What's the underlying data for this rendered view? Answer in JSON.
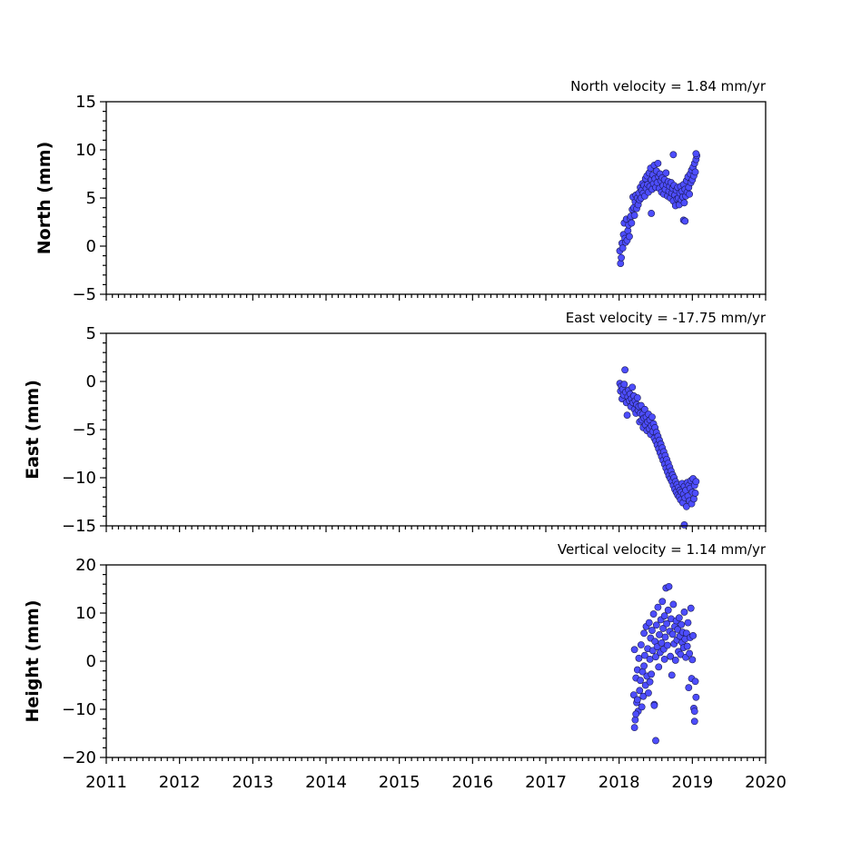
{
  "chart_data": [
    {
      "type": "scatter",
      "title": "North velocity = 1.84 mm/yr",
      "ylabel": "North (mm)",
      "xlim": [
        2011,
        2020
      ],
      "ylim": [
        -5,
        15
      ],
      "yticks": [
        -5,
        0,
        5,
        10,
        15
      ],
      "ytick_labels": [
        "−5",
        "0",
        "5",
        "10",
        "15"
      ],
      "xticks": [
        2011,
        2012,
        2013,
        2014,
        2015,
        2016,
        2017,
        2018,
        2019,
        2020
      ],
      "xtick_labels": [],
      "grid": false,
      "marker_color": "#4d4dff",
      "points": [
        [
          2018.01,
          -0.5
        ],
        [
          2018.02,
          -1.8
        ],
        [
          2018.03,
          -1.2
        ],
        [
          2018.04,
          0.3
        ],
        [
          2018.05,
          -0.2
        ],
        [
          2018.06,
          1.2
        ],
        [
          2018.07,
          2.4
        ],
        [
          2018.08,
          0.8
        ],
        [
          2018.09,
          0.4
        ],
        [
          2018.1,
          2.8
        ],
        [
          2018.11,
          0.6
        ],
        [
          2018.12,
          1.6
        ],
        [
          2018.13,
          2.2
        ],
        [
          2018.14,
          1.0
        ],
        [
          2018.15,
          2.9
        ],
        [
          2018.16,
          3.1
        ],
        [
          2018.17,
          2.4
        ],
        [
          2018.18,
          3.8
        ],
        [
          2018.19,
          5.1
        ],
        [
          2018.2,
          4.0
        ],
        [
          2018.21,
          3.2
        ],
        [
          2018.22,
          4.6
        ],
        [
          2018.23,
          5.3
        ],
        [
          2018.24,
          3.9
        ],
        [
          2018.25,
          5.0
        ],
        [
          2018.26,
          4.3
        ],
        [
          2018.27,
          5.5
        ],
        [
          2018.28,
          4.8
        ],
        [
          2018.29,
          6.1
        ],
        [
          2018.3,
          5.0
        ],
        [
          2018.31,
          5.8
        ],
        [
          2018.32,
          6.5
        ],
        [
          2018.33,
          5.5
        ],
        [
          2018.34,
          6.3
        ],
        [
          2018.35,
          5.2
        ],
        [
          2018.36,
          7.0
        ],
        [
          2018.37,
          6.0
        ],
        [
          2018.38,
          7.3
        ],
        [
          2018.39,
          6.4
        ],
        [
          2018.4,
          5.6
        ],
        [
          2018.41,
          7.6
        ],
        [
          2018.42,
          6.2
        ],
        [
          2018.43,
          8.1
        ],
        [
          2018.44,
          6.9
        ],
        [
          2018.45,
          5.9
        ],
        [
          2018.46,
          7.4
        ],
        [
          2018.47,
          6.5
        ],
        [
          2018.48,
          8.4
        ],
        [
          2018.49,
          7.0
        ],
        [
          2018.5,
          6.1
        ],
        [
          2018.51,
          7.8
        ],
        [
          2018.52,
          6.6
        ],
        [
          2018.53,
          8.6
        ],
        [
          2018.54,
          7.2
        ],
        [
          2018.55,
          6.0
        ],
        [
          2018.56,
          7.5
        ],
        [
          2018.57,
          6.8
        ],
        [
          2018.58,
          5.6
        ],
        [
          2018.59,
          7.1
        ],
        [
          2018.6,
          6.3
        ],
        [
          2018.61,
          5.4
        ],
        [
          2018.62,
          6.9
        ],
        [
          2018.63,
          5.9
        ],
        [
          2018.64,
          7.6
        ],
        [
          2018.65,
          6.4
        ],
        [
          2018.66,
          5.2
        ],
        [
          2018.67,
          6.7
        ],
        [
          2018.68,
          5.7
        ],
        [
          2018.69,
          6.2
        ],
        [
          2018.7,
          5.0
        ],
        [
          2018.71,
          6.6
        ],
        [
          2018.72,
          5.5
        ],
        [
          2018.73,
          6.0
        ],
        [
          2018.74,
          4.7
        ],
        [
          2018.75,
          6.3
        ],
        [
          2018.76,
          5.3
        ],
        [
          2018.77,
          4.2
        ],
        [
          2018.78,
          5.8
        ],
        [
          2018.79,
          4.9
        ],
        [
          2018.8,
          6.1
        ],
        [
          2018.81,
          5.0
        ],
        [
          2018.82,
          4.3
        ],
        [
          2018.83,
          5.5
        ],
        [
          2018.84,
          6.2
        ],
        [
          2018.85,
          4.8
        ],
        [
          2018.86,
          5.7
        ],
        [
          2018.87,
          5.1
        ],
        [
          2018.88,
          6.4
        ],
        [
          2018.89,
          4.5
        ],
        [
          2018.9,
          5.9
        ],
        [
          2018.91,
          5.2
        ],
        [
          2018.92,
          6.8
        ],
        [
          2018.93,
          5.6
        ],
        [
          2018.94,
          7.2
        ],
        [
          2018.95,
          6.1
        ],
        [
          2018.96,
          5.4
        ],
        [
          2018.97,
          7.5
        ],
        [
          2018.98,
          6.6
        ],
        [
          2018.99,
          7.9
        ],
        [
          2019.0,
          6.9
        ],
        [
          2019.01,
          8.2
        ],
        [
          2019.02,
          7.3
        ],
        [
          2019.03,
          8.6
        ],
        [
          2019.04,
          7.7
        ],
        [
          2019.05,
          9.0
        ],
        [
          2019.06,
          9.4
        ],
        [
          2018.44,
          3.4
        ],
        [
          2018.74,
          9.5
        ],
        [
          2018.88,
          2.7
        ],
        [
          2018.9,
          2.6
        ],
        [
          2019.05,
          9.6
        ]
      ]
    },
    {
      "type": "scatter",
      "title": "East velocity = -17.75 mm/yr",
      "ylabel": "East (mm)",
      "xlim": [
        2011,
        2020
      ],
      "ylim": [
        -15,
        5
      ],
      "yticks": [
        -15,
        -10,
        -5,
        0,
        5
      ],
      "ytick_labels": [
        "−15",
        "−10",
        "−5",
        "0",
        "5"
      ],
      "xticks": [
        2011,
        2012,
        2013,
        2014,
        2015,
        2016,
        2017,
        2018,
        2019,
        2020
      ],
      "xtick_labels": [],
      "grid": false,
      "marker_color": "#4d4dff",
      "points": [
        [
          2018.01,
          -0.2
        ],
        [
          2018.02,
          -1.0
        ],
        [
          2018.03,
          -0.5
        ],
        [
          2018.04,
          -1.8
        ],
        [
          2018.05,
          -0.8
        ],
        [
          2018.06,
          -1.4
        ],
        [
          2018.07,
          -0.3
        ],
        [
          2018.08,
          1.2
        ],
        [
          2018.09,
          -1.1
        ],
        [
          2018.1,
          -2.2
        ],
        [
          2018.11,
          -3.5
        ],
        [
          2018.12,
          -1.6
        ],
        [
          2018.13,
          -0.9
        ],
        [
          2018.14,
          -2.0
        ],
        [
          2018.15,
          -1.3
        ],
        [
          2018.16,
          -2.6
        ],
        [
          2018.17,
          -1.8
        ],
        [
          2018.18,
          -0.6
        ],
        [
          2018.19,
          -2.2
        ],
        [
          2018.2,
          -1.5
        ],
        [
          2018.21,
          -2.9
        ],
        [
          2018.22,
          -2.0
        ],
        [
          2018.23,
          -3.3
        ],
        [
          2018.24,
          -2.4
        ],
        [
          2018.25,
          -1.7
        ],
        [
          2018.26,
          -3.0
        ],
        [
          2018.27,
          -2.6
        ],
        [
          2018.28,
          -4.2
        ],
        [
          2018.29,
          -3.3
        ],
        [
          2018.3,
          -2.5
        ],
        [
          2018.31,
          -4.0
        ],
        [
          2018.32,
          -3.4
        ],
        [
          2018.33,
          -4.8
        ],
        [
          2018.34,
          -3.8
        ],
        [
          2018.35,
          -2.9
        ],
        [
          2018.36,
          -4.5
        ],
        [
          2018.37,
          -3.7
        ],
        [
          2018.38,
          -5.1
        ],
        [
          2018.39,
          -4.2
        ],
        [
          2018.4,
          -3.4
        ],
        [
          2018.41,
          -4.9
        ],
        [
          2018.42,
          -4.0
        ],
        [
          2018.43,
          -5.5
        ],
        [
          2018.44,
          -4.6
        ],
        [
          2018.45,
          -3.7
        ],
        [
          2018.46,
          -5.2
        ],
        [
          2018.47,
          -4.4
        ],
        [
          2018.48,
          -5.9
        ],
        [
          2018.49,
          -4.8
        ],
        [
          2018.5,
          -6.2
        ],
        [
          2018.51,
          -5.3
        ],
        [
          2018.52,
          -6.6
        ],
        [
          2018.53,
          -5.7
        ],
        [
          2018.54,
          -7.0
        ],
        [
          2018.55,
          -6.1
        ],
        [
          2018.56,
          -7.4
        ],
        [
          2018.57,
          -6.5
        ],
        [
          2018.58,
          -7.8
        ],
        [
          2018.59,
          -6.9
        ],
        [
          2018.6,
          -8.2
        ],
        [
          2018.61,
          -7.3
        ],
        [
          2018.62,
          -8.6
        ],
        [
          2018.63,
          -7.7
        ],
        [
          2018.64,
          -9.0
        ],
        [
          2018.65,
          -8.1
        ],
        [
          2018.66,
          -9.4
        ],
        [
          2018.67,
          -8.5
        ],
        [
          2018.68,
          -9.8
        ],
        [
          2018.69,
          -8.9
        ],
        [
          2018.7,
          -10.1
        ],
        [
          2018.71,
          -9.3
        ],
        [
          2018.72,
          -10.4
        ],
        [
          2018.73,
          -9.7
        ],
        [
          2018.74,
          -10.8
        ],
        [
          2018.75,
          -10.0
        ],
        [
          2018.76,
          -11.2
        ],
        [
          2018.77,
          -10.4
        ],
        [
          2018.78,
          -11.5
        ],
        [
          2018.79,
          -10.7
        ],
        [
          2018.8,
          -11.8
        ],
        [
          2018.81,
          -11.0
        ],
        [
          2018.82,
          -12.0
        ],
        [
          2018.83,
          -11.3
        ],
        [
          2018.84,
          -12.3
        ],
        [
          2018.85,
          -11.5
        ],
        [
          2018.86,
          -10.6
        ],
        [
          2018.87,
          -12.6
        ],
        [
          2018.88,
          -11.7
        ],
        [
          2018.89,
          -10.9
        ],
        [
          2018.9,
          -12.1
        ],
        [
          2018.91,
          -11.3
        ],
        [
          2018.92,
          -13.0
        ],
        [
          2018.93,
          -10.5
        ],
        [
          2018.94,
          -11.9
        ],
        [
          2018.95,
          -10.8
        ],
        [
          2018.96,
          -12.4
        ],
        [
          2018.97,
          -11.1
        ],
        [
          2018.98,
          -10.3
        ],
        [
          2018.99,
          -12.7
        ],
        [
          2019.0,
          -11.5
        ],
        [
          2019.01,
          -10.1
        ],
        [
          2019.02,
          -12.2
        ],
        [
          2019.03,
          -10.8
        ],
        [
          2019.04,
          -11.6
        ],
        [
          2019.05,
          -10.4
        ],
        [
          2018.89,
          -14.9
        ]
      ]
    },
    {
      "type": "scatter",
      "title": "Vertical velocity = 1.14 mm/yr",
      "ylabel": "Height (mm)",
      "xlim": [
        2011,
        2020
      ],
      "ylim": [
        -20,
        20
      ],
      "yticks": [
        -20,
        -10,
        0,
        10,
        20
      ],
      "ytick_labels": [
        "−20",
        "−10",
        "0",
        "10",
        "20"
      ],
      "xticks": [
        2011,
        2012,
        2013,
        2014,
        2015,
        2016,
        2017,
        2018,
        2019,
        2020
      ],
      "xtick_labels": [
        "2011",
        "2012",
        "2013",
        "2014",
        "2015",
        "2016",
        "2017",
        "2018",
        "2019",
        "2020"
      ],
      "grid": false,
      "marker_color": "#4d4dff",
      "points": [
        [
          2018.2,
          -7.0
        ],
        [
          2018.21,
          2.4
        ],
        [
          2018.22,
          -12.2
        ],
        [
          2018.23,
          -3.5
        ],
        [
          2018.24,
          -8.6
        ],
        [
          2018.25,
          -1.8
        ],
        [
          2018.26,
          -10.4
        ],
        [
          2018.27,
          0.6
        ],
        [
          2018.28,
          -6.1
        ],
        [
          2018.29,
          -4.0
        ],
        [
          2018.3,
          3.4
        ],
        [
          2018.31,
          -9.5
        ],
        [
          2018.32,
          -2.2
        ],
        [
          2018.33,
          -7.3
        ],
        [
          2018.34,
          5.8
        ],
        [
          2018.35,
          1.2
        ],
        [
          2018.36,
          -5.0
        ],
        [
          2018.37,
          7.2
        ],
        [
          2018.38,
          -3.1
        ],
        [
          2018.39,
          2.6
        ],
        [
          2018.4,
          -6.6
        ],
        [
          2018.41,
          8.0
        ],
        [
          2018.42,
          0.4
        ],
        [
          2018.43,
          4.8
        ],
        [
          2018.44,
          -2.7
        ],
        [
          2018.45,
          6.4
        ],
        [
          2018.46,
          2.2
        ],
        [
          2018.47,
          9.8
        ],
        [
          2018.48,
          -9.0
        ],
        [
          2018.49,
          4.1
        ],
        [
          2018.5,
          0.9
        ],
        [
          2018.51,
          7.5
        ],
        [
          2018.52,
          3.0
        ],
        [
          2018.53,
          11.2
        ],
        [
          2018.54,
          -1.2
        ],
        [
          2018.55,
          5.5
        ],
        [
          2018.56,
          1.8
        ],
        [
          2018.57,
          8.6
        ],
        [
          2018.58,
          3.8
        ],
        [
          2018.59,
          12.4
        ],
        [
          2018.6,
          6.8
        ],
        [
          2018.61,
          2.5
        ],
        [
          2018.62,
          9.4
        ],
        [
          2018.63,
          5.0
        ],
        [
          2018.64,
          15.2
        ],
        [
          2018.65,
          7.8
        ],
        [
          2018.66,
          3.3
        ],
        [
          2018.67,
          10.6
        ],
        [
          2018.68,
          15.5
        ],
        [
          2018.69,
          6.2
        ],
        [
          2018.7,
          1.0
        ],
        [
          2018.71,
          8.8
        ],
        [
          2018.72,
          -2.9
        ],
        [
          2018.73,
          5.6
        ],
        [
          2018.74,
          11.8
        ],
        [
          2018.75,
          3.6
        ],
        [
          2018.76,
          7.2
        ],
        [
          2018.77,
          0.2
        ],
        [
          2018.78,
          8.4
        ],
        [
          2018.79,
          4.4
        ],
        [
          2018.8,
          6.6
        ],
        [
          2018.81,
          2.0
        ],
        [
          2018.82,
          9.0
        ],
        [
          2018.83,
          5.2
        ],
        [
          2018.84,
          1.4
        ],
        [
          2018.85,
          7.6
        ],
        [
          2018.86,
          3.9
        ],
        [
          2018.87,
          6.0
        ],
        [
          2018.88,
          2.8
        ],
        [
          2018.89,
          10.2
        ],
        [
          2018.9,
          4.6
        ],
        [
          2018.91,
          0.8
        ],
        [
          2018.92,
          5.8
        ],
        [
          2018.93,
          3.1
        ],
        [
          2018.94,
          8.0
        ],
        [
          2018.95,
          -5.5
        ],
        [
          2018.96,
          1.6
        ],
        [
          2018.97,
          4.9
        ],
        [
          2018.98,
          11.0
        ],
        [
          2018.99,
          -3.6
        ],
        [
          2019.0,
          0.3
        ],
        [
          2019.01,
          5.3
        ],
        [
          2019.02,
          -9.8
        ],
        [
          2019.03,
          -12.5
        ],
        [
          2019.04,
          -4.2
        ],
        [
          2019.05,
          -7.5
        ],
        [
          2018.5,
          -16.5
        ],
        [
          2018.21,
          -13.8
        ],
        [
          2018.23,
          -11.0
        ],
        [
          2018.25,
          -8.0
        ],
        [
          2018.48,
          -9.2
        ],
        [
          2019.03,
          -10.4
        ],
        [
          2018.62,
          0.4
        ],
        [
          2018.42,
          -4.3
        ],
        [
          2018.34,
          -1.0
        ]
      ]
    }
  ]
}
